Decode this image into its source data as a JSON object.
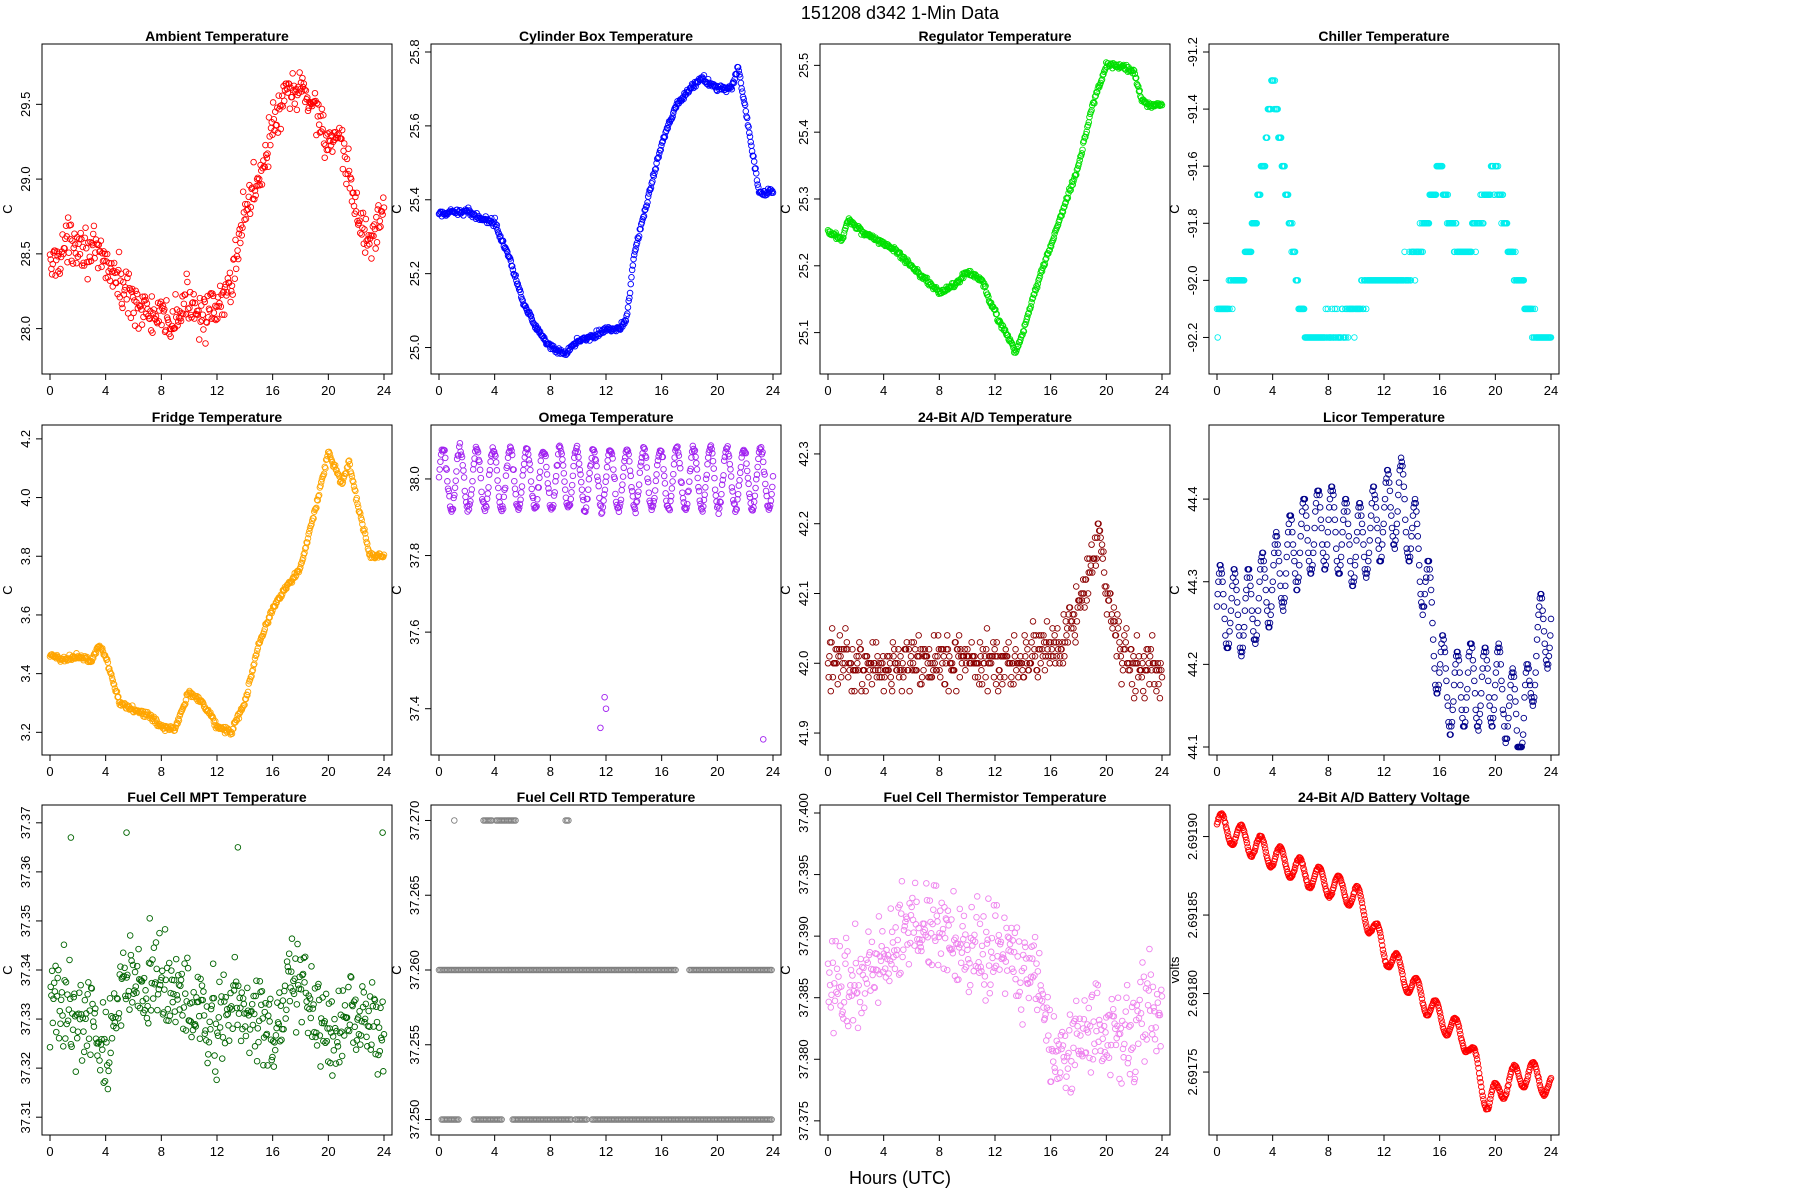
{
  "page": {
    "title": "151208   d342   1-Min Data",
    "x_axis_label": "Hours (UTC)"
  },
  "chart_data": [
    {
      "type": "scatter",
      "title": "Ambient Temperature",
      "xlabel": "",
      "ylabel": "C",
      "color": "#ff0000",
      "xlim": [
        0,
        24
      ],
      "ylim": [
        27.75,
        29.85
      ],
      "xticks": [
        0,
        4,
        8,
        12,
        16,
        20,
        24
      ],
      "yticks": [
        "28.0",
        "28.5",
        "29.0",
        "29.5"
      ],
      "trend": [
        [
          0,
          28.4
        ],
        [
          1,
          28.55
        ],
        [
          2,
          28.6
        ],
        [
          3,
          28.5
        ],
        [
          4,
          28.45
        ],
        [
          5,
          28.3
        ],
        [
          6,
          28.2
        ],
        [
          7,
          28.1
        ],
        [
          8,
          28.05
        ],
        [
          9,
          28.05
        ],
        [
          10,
          28.2
        ],
        [
          11,
          28.1
        ],
        [
          12,
          28.1
        ],
        [
          13,
          28.3
        ],
        [
          14,
          28.8
        ],
        [
          15,
          29.0
        ],
        [
          16,
          29.35
        ],
        [
          17,
          29.55
        ],
        [
          18,
          29.6
        ],
        [
          19,
          29.5
        ],
        [
          20,
          29.25
        ],
        [
          21,
          29.2
        ],
        [
          22,
          28.8
        ],
        [
          23,
          28.55
        ],
        [
          24,
          28.85
        ]
      ],
      "noise": 0.14,
      "spikes": []
    },
    {
      "type": "scatter",
      "title": "Cylinder Box Temperature",
      "xlabel": "",
      "ylabel": "C",
      "color": "#0000ff",
      "xlim": [
        0,
        24
      ],
      "ylim": [
        24.95,
        25.8
      ],
      "xticks": [
        0,
        4,
        8,
        12,
        16,
        20,
        24
      ],
      "yticks": [
        "25.0",
        "25.2",
        "25.4",
        "25.6",
        "25.8"
      ],
      "trend": [
        [
          0,
          25.36
        ],
        [
          2,
          25.37
        ],
        [
          3,
          25.35
        ],
        [
          4,
          25.34
        ],
        [
          5,
          25.25
        ],
        [
          6,
          25.13
        ],
        [
          7,
          25.05
        ],
        [
          8,
          25.0
        ],
        [
          9,
          24.98
        ],
        [
          10,
          25.02
        ],
        [
          11,
          25.03
        ],
        [
          12,
          25.05
        ],
        [
          13,
          25.05
        ],
        [
          13.5,
          25.08
        ],
        [
          14,
          25.25
        ],
        [
          15,
          25.4
        ],
        [
          16,
          25.55
        ],
        [
          17,
          25.65
        ],
        [
          18,
          25.7
        ],
        [
          19,
          25.73
        ],
        [
          20,
          25.7
        ],
        [
          21,
          25.7
        ],
        [
          21.5,
          25.76
        ],
        [
          22,
          25.65
        ],
        [
          23,
          25.42
        ],
        [
          24,
          25.42
        ]
      ],
      "noise": 0.008,
      "spikes": []
    },
    {
      "type": "scatter",
      "title": "Regulator Temperature",
      "xlabel": "",
      "ylabel": "C",
      "color": "#00e000",
      "xlim": [
        0,
        24
      ],
      "ylim": [
        25.05,
        25.52
      ],
      "xticks": [
        0,
        4,
        8,
        12,
        16,
        20,
        24
      ],
      "yticks": [
        "25.1",
        "25.2",
        "25.3",
        "25.4",
        "25.5"
      ],
      "trend": [
        [
          0,
          25.25
        ],
        [
          1,
          25.24
        ],
        [
          1.5,
          25.27
        ],
        [
          2.5,
          25.25
        ],
        [
          3.5,
          25.24
        ],
        [
          5,
          25.22
        ],
        [
          6,
          25.2
        ],
        [
          7,
          25.18
        ],
        [
          8,
          25.16
        ],
        [
          9,
          25.17
        ],
        [
          10,
          25.19
        ],
        [
          11,
          25.18
        ],
        [
          12,
          25.13
        ],
        [
          13,
          25.09
        ],
        [
          13.5,
          25.07
        ],
        [
          14,
          25.1
        ],
        [
          15,
          25.17
        ],
        [
          16,
          25.23
        ],
        [
          17,
          25.29
        ],
        [
          18,
          25.35
        ],
        [
          19,
          25.44
        ],
        [
          20,
          25.5
        ],
        [
          21,
          25.5
        ],
        [
          22,
          25.49
        ],
        [
          22.5,
          25.45
        ],
        [
          23,
          25.44
        ],
        [
          24,
          25.44
        ]
      ],
      "noise": 0.004,
      "spikes": []
    },
    {
      "type": "scatter",
      "title": "Chiller Temperature",
      "xlabel": "",
      "ylabel": "C",
      "color": "#00eeee",
      "xlim": [
        0,
        24
      ],
      "ylim": [
        -92.3,
        -91.2
      ],
      "xticks": [
        0,
        4,
        8,
        12,
        16,
        20,
        24
      ],
      "yticks": [
        "-92.2",
        "-92.0",
        "-91.8",
        "-91.6",
        "-91.4",
        "-91.2"
      ],
      "trend": [
        [
          0,
          -92.15
        ],
        [
          1,
          -92.05
        ],
        [
          2,
          -91.95
        ],
        [
          3,
          -91.7
        ],
        [
          4,
          -91.3
        ],
        [
          5,
          -91.7
        ],
        [
          6,
          -92.1
        ],
        [
          7,
          -92.2
        ],
        [
          8,
          -92.15
        ],
        [
          9,
          -92.15
        ],
        [
          10,
          -92.1
        ],
        [
          11,
          -92.0
        ],
        [
          12,
          -92.0
        ],
        [
          13,
          -92.0
        ],
        [
          14,
          -91.95
        ],
        [
          15,
          -91.8
        ],
        [
          16,
          -91.6
        ],
        [
          17,
          -91.85
        ],
        [
          18,
          -91.9
        ],
        [
          19,
          -91.75
        ],
        [
          20,
          -91.6
        ],
        [
          21,
          -91.9
        ],
        [
          22,
          -92.05
        ],
        [
          23,
          -92.2
        ],
        [
          24,
          -92.2
        ]
      ],
      "noise": 0.04,
      "step": 0.1,
      "spikes": []
    },
    {
      "type": "scatter",
      "title": "Fridge Temperature",
      "xlabel": "",
      "ylabel": "C",
      "color": "#ffa500",
      "xlim": [
        0,
        24
      ],
      "ylim": [
        3.15,
        4.22
      ],
      "xticks": [
        0,
        4,
        8,
        12,
        16,
        20,
        24
      ],
      "yticks": [
        "3.2",
        "3.4",
        "3.6",
        "3.8",
        "4.0",
        "4.2"
      ],
      "trend": [
        [
          0,
          3.46
        ],
        [
          1,
          3.45
        ],
        [
          2,
          3.46
        ],
        [
          3,
          3.44
        ],
        [
          3.5,
          3.5
        ],
        [
          4,
          3.46
        ],
        [
          5,
          3.3
        ],
        [
          6,
          3.28
        ],
        [
          7,
          3.26
        ],
        [
          8,
          3.22
        ],
        [
          9,
          3.21
        ],
        [
          10,
          3.34
        ],
        [
          11,
          3.3
        ],
        [
          12,
          3.22
        ],
        [
          13,
          3.2
        ],
        [
          14,
          3.3
        ],
        [
          15,
          3.5
        ],
        [
          16,
          3.62
        ],
        [
          17,
          3.7
        ],
        [
          18,
          3.76
        ],
        [
          19,
          3.95
        ],
        [
          20,
          4.15
        ],
        [
          21,
          4.05
        ],
        [
          21.5,
          4.12
        ],
        [
          22,
          4.0
        ],
        [
          23,
          3.8
        ],
        [
          24,
          3.8
        ]
      ],
      "noise": 0.01,
      "spikes": []
    },
    {
      "type": "scatter",
      "title": "Omega Temperature",
      "xlabel": "",
      "ylabel": "C",
      "color": "#a020f0",
      "xlim": [
        0,
        24
      ],
      "ylim": [
        37.3,
        38.12
      ],
      "xticks": [
        0,
        4,
        8,
        12,
        16,
        20,
        24
      ],
      "yticks": [
        "37.4",
        "37.6",
        "37.8",
        "38.0"
      ],
      "trend": [
        [
          0,
          38.0
        ],
        [
          24,
          38.0
        ]
      ],
      "oscillation": {
        "amp": 0.08,
        "period": 1.2
      },
      "noise": 0.01,
      "spikes": [
        [
          11.6,
          37.35
        ],
        [
          11.9,
          37.43
        ],
        [
          12.0,
          37.4
        ],
        [
          23.3,
          37.32
        ]
      ]
    },
    {
      "type": "scatter",
      "title": "24-Bit A/D Temperature",
      "xlabel": "",
      "ylabel": "C",
      "color": "#8b0000",
      "xlim": [
        0,
        24
      ],
      "ylim": [
        41.88,
        42.33
      ],
      "xticks": [
        0,
        4,
        8,
        12,
        16,
        20,
        24
      ],
      "yticks": [
        "41.9",
        "42.0",
        "42.1",
        "42.2",
        "42.3"
      ],
      "trend": [
        [
          0,
          42.0
        ],
        [
          14,
          42.0
        ],
        [
          15,
          42.03
        ],
        [
          16,
          42.02
        ],
        [
          17,
          42.03
        ],
        [
          18,
          42.08
        ],
        [
          19,
          42.15
        ],
        [
          19.6,
          42.18
        ],
        [
          20,
          42.1
        ],
        [
          21,
          42.02
        ],
        [
          22,
          42.0
        ],
        [
          24,
          41.99
        ]
      ],
      "noise": 0.035,
      "step": 0.01,
      "spikes": []
    },
    {
      "type": "scatter",
      "title": "Licor Temperature",
      "xlabel": "",
      "ylabel": "C",
      "color": "#00008b",
      "xlim": [
        0,
        24
      ],
      "ylim": [
        44.1,
        44.48
      ],
      "xticks": [
        0,
        4,
        8,
        12,
        16,
        20,
        24
      ],
      "yticks": [
        "44.1",
        "44.2",
        "44.3",
        "44.4"
      ],
      "trend": [
        [
          0,
          44.27
        ],
        [
          2,
          44.26
        ],
        [
          4,
          44.3
        ],
        [
          6,
          44.35
        ],
        [
          8,
          44.37
        ],
        [
          10,
          44.34
        ],
        [
          12,
          44.38
        ],
        [
          13.3,
          44.4
        ],
        [
          14,
          44.36
        ],
        [
          15,
          44.3
        ],
        [
          16,
          44.19
        ],
        [
          17,
          44.16
        ],
        [
          18,
          44.18
        ],
        [
          19,
          44.17
        ],
        [
          20,
          44.18
        ],
        [
          21,
          44.15
        ],
        [
          22,
          44.12
        ],
        [
          23,
          44.23
        ],
        [
          24,
          44.25
        ]
      ],
      "oscillation": {
        "amp": 0.05,
        "period": 1.0
      },
      "noise": 0.003,
      "step": 0.005,
      "spikes": []
    },
    {
      "type": "scatter",
      "title": "Fuel Cell MPT Temperature",
      "xlabel": "",
      "ylabel": "C",
      "color": "#006400",
      "xlim": [
        0,
        24
      ],
      "ylim": [
        37.308,
        37.372
      ],
      "xticks": [
        0,
        4,
        8,
        12,
        16,
        20,
        24
      ],
      "yticks": [
        "37.31",
        "37.32",
        "37.33",
        "37.34",
        "37.35",
        "37.36",
        "37.37"
      ],
      "trend": [
        [
          0,
          37.333
        ],
        [
          3,
          37.33
        ],
        [
          4,
          37.322
        ],
        [
          5.5,
          37.34
        ],
        [
          7,
          37.338
        ],
        [
          9,
          37.335
        ],
        [
          12,
          37.328
        ],
        [
          14,
          37.335
        ],
        [
          16,
          37.325
        ],
        [
          17.5,
          37.34
        ],
        [
          20,
          37.325
        ],
        [
          22,
          37.33
        ],
        [
          24,
          37.325
        ]
      ],
      "noise": 0.009,
      "spikes": [
        [
          1.5,
          37.367
        ],
        [
          5.5,
          37.368
        ],
        [
          13.5,
          37.365
        ],
        [
          23.9,
          37.368
        ]
      ]
    },
    {
      "type": "scatter",
      "title": "Fuel Cell RTD Temperature",
      "xlabel": "",
      "ylabel": "C",
      "color": "#808080",
      "xlim": [
        0,
        24
      ],
      "ylim": [
        37.2495,
        37.2705
      ],
      "xticks": [
        0,
        4,
        8,
        12,
        16,
        20,
        24
      ],
      "yticks": [
        "37.250",
        "37.255",
        "37.260",
        "37.265",
        "37.270"
      ],
      "levels": [
        37.25,
        37.26,
        37.27
      ],
      "level_runs": [
        {
          "level": 37.26,
          "ranges": [
            [
              0,
              17
            ],
            [
              18,
              24
            ]
          ]
        },
        {
          "level": 37.25,
          "ranges": [
            [
              0.2,
              1.5
            ],
            [
              2.5,
              4.5
            ],
            [
              5.3,
              9.5
            ],
            [
              9.8,
              10.6
            ],
            [
              11.0,
              24
            ]
          ]
        },
        {
          "level": 37.27,
          "ranges": [
            [
              1.1,
              1.2
            ],
            [
              3.2,
              3.9
            ],
            [
              4.1,
              5.5
            ],
            [
              9.1,
              9.3
            ]
          ]
        }
      ],
      "noise": 0,
      "spikes": []
    },
    {
      "type": "scatter",
      "title": "Fuel Cell Thermistor Temperature",
      "xlabel": "",
      "ylabel": "C",
      "color": "#ee82ee",
      "xlim": [
        0,
        24
      ],
      "ylim": [
        37.3745,
        37.4
      ],
      "xticks": [
        0,
        4,
        8,
        12,
        16,
        20,
        24
      ],
      "yticks": [
        "37.375",
        "37.380",
        "37.385",
        "37.390",
        "37.395",
        "37.400"
      ],
      "trend": [
        [
          0,
          37.387
        ],
        [
          2,
          37.386
        ],
        [
          4,
          37.388
        ],
        [
          6,
          37.391
        ],
        [
          8,
          37.391
        ],
        [
          10,
          37.389
        ],
        [
          12,
          37.39
        ],
        [
          14,
          37.388
        ],
        [
          15,
          37.388
        ],
        [
          16,
          37.381
        ],
        [
          17,
          37.38
        ],
        [
          18,
          37.382
        ],
        [
          20,
          37.383
        ],
        [
          22,
          37.382
        ],
        [
          23,
          37.385
        ],
        [
          24,
          37.383
        ]
      ],
      "noise": 0.0035,
      "spikes": []
    },
    {
      "type": "line",
      "title": "24-Bit A/D Battery Voltage",
      "xlabel": "",
      "ylabel": "volts",
      "color": "#ff0000",
      "xlim": [
        0,
        24
      ],
      "ylim": [
        2.691715,
        2.691915
      ],
      "xticks": [
        0,
        4,
        8,
        12,
        16,
        20,
        24
      ],
      "yticks": [
        "2.69175",
        "2.69180",
        "2.69185",
        "2.69190"
      ],
      "trend": [
        [
          0,
          2.691908
        ],
        [
          2,
          2.691898
        ],
        [
          4,
          2.691888
        ],
        [
          6,
          2.691878
        ],
        [
          8,
          2.69187
        ],
        [
          10,
          2.691862
        ],
        [
          12,
          2.691828
        ],
        [
          14,
          2.691805
        ],
        [
          16,
          2.691785
        ],
        [
          18,
          2.69177
        ],
        [
          19.5,
          2.69173
        ],
        [
          21,
          2.691745
        ],
        [
          22.5,
          2.69175
        ],
        [
          24,
          2.69174
        ]
      ],
      "oscillation": {
        "amp": 8e-06,
        "period": 1.4
      },
      "noise": 5e-07,
      "spikes": []
    }
  ]
}
